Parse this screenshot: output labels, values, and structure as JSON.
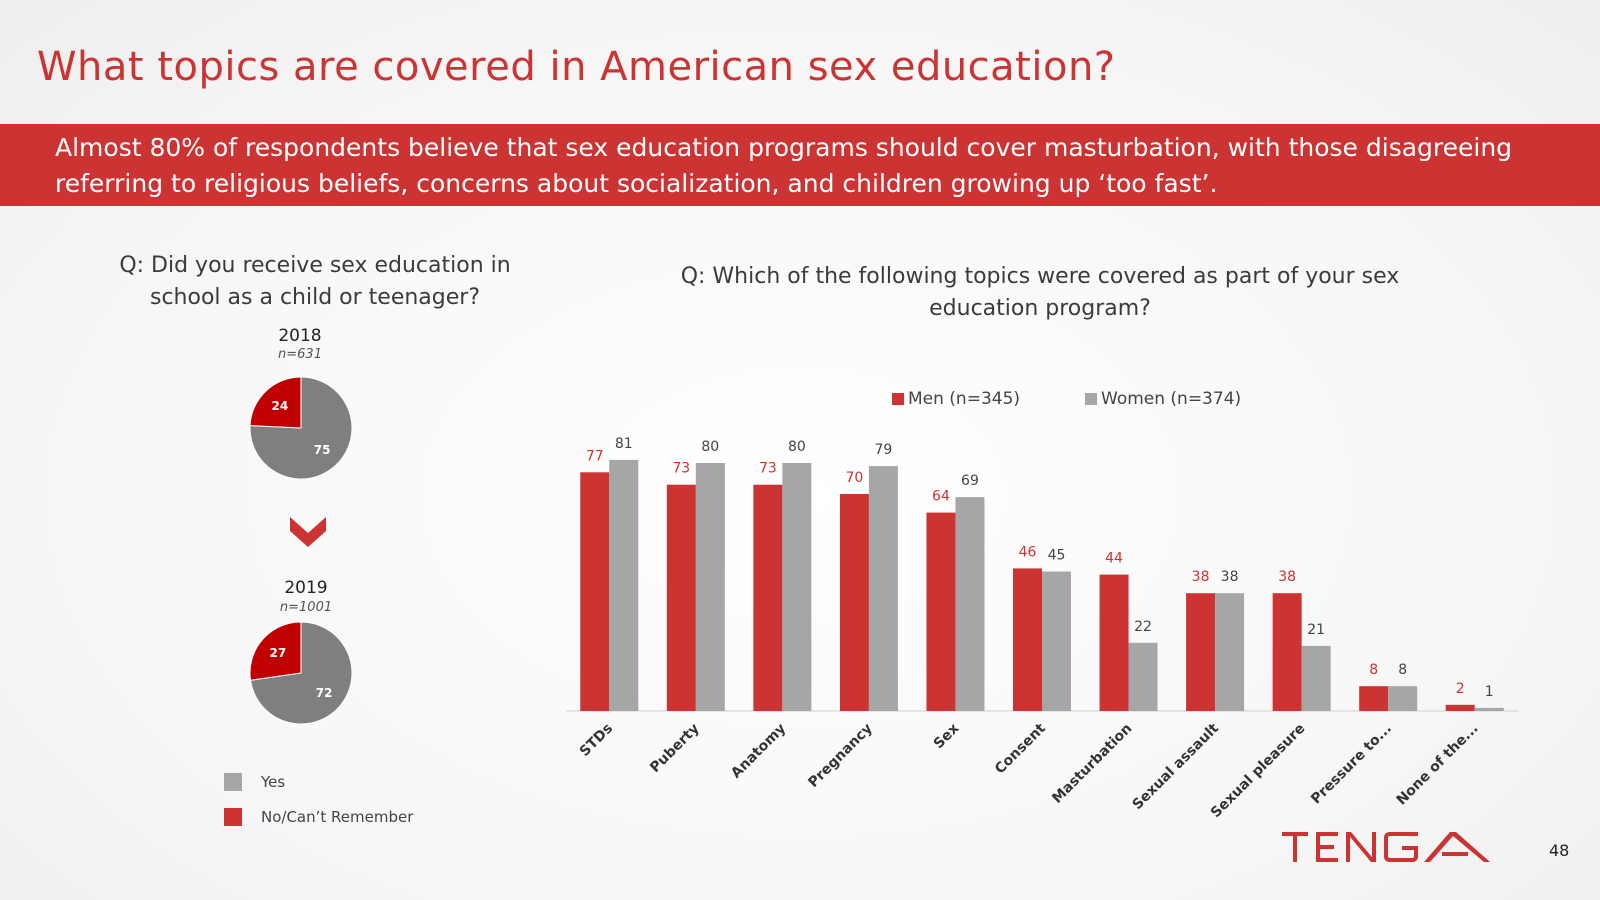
{
  "title": "What topics are covered in American sex education?",
  "banner": "Almost 80% of respondents believe that sex education programs should cover masturbation, with those disagreeing referring to religious beliefs, concerns about socialization, and children growing up ‘too fast’.",
  "left_question": "Q: Did you receive sex education in school as a child or teenager?",
  "right_question": "Q: Which of the following topics were covered as part of your sex education program?",
  "colors": {
    "red": "#cc3333",
    "gray": "#a6a6a6",
    "dark_gray": "#7f7f7f",
    "dark_red": "#c00000"
  },
  "pies": [
    {
      "year": "2018",
      "n": "n=631",
      "yes": 75,
      "no": 24
    },
    {
      "year": "2019",
      "n": "n=1001",
      "yes": 72,
      "no": 27
    }
  ],
  "pie_legend": {
    "yes": "Yes",
    "no": "No/Can’t Remember"
  },
  "chart_data": {
    "type": "bar",
    "title": "Q: Which of the following topics were covered as part of your sex education program?",
    "categories": [
      "STDs",
      "Puberty",
      "Anatomy",
      "Pregnancy",
      "Sex",
      "Consent",
      "Masturbation",
      "Sexual assault",
      "Sexual pleasure",
      "Pressure to...",
      "None of the..."
    ],
    "series": [
      {
        "name": "Men (n=345)",
        "values": [
          77,
          73,
          73,
          70,
          64,
          46,
          44,
          38,
          38,
          8,
          2
        ]
      },
      {
        "name": "Women (n=374)",
        "values": [
          81,
          80,
          80,
          79,
          69,
          45,
          22,
          38,
          21,
          8,
          1
        ]
      }
    ],
    "ylim": [
      0,
      100
    ],
    "grid": false,
    "legend": "top-center"
  },
  "logo": "TENGA",
  "page_number": "48"
}
